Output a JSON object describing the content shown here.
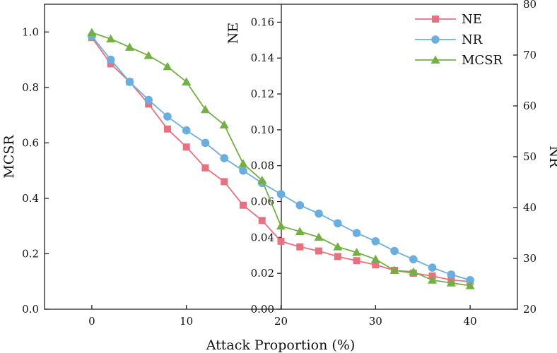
{
  "chart_data": {
    "type": "line",
    "xlabel": "Attack Proportion (%)",
    "x_ticks": [
      0,
      10,
      20,
      30,
      40
    ],
    "xlim": [
      -5,
      45
    ],
    "axes": {
      "left": {
        "label": "MCSR",
        "ylim": [
          0,
          1.1
        ],
        "ticks": [
          "0.0",
          "0.2",
          "0.4",
          "0.6",
          "0.8",
          "1.0"
        ]
      },
      "middle": {
        "label": "NE",
        "ylim": [
          0,
          0.17
        ],
        "ticks": [
          "0.00",
          "0.02",
          "0.04",
          "0.06",
          "0.08",
          "0.10",
          "0.12",
          "0.14",
          "0.16"
        ]
      },
      "right": {
        "label": "NR",
        "ylim": [
          20,
          80
        ],
        "ticks": [
          "20",
          "30",
          "40",
          "50",
          "60",
          "70",
          "80"
        ]
      }
    },
    "legend_position": "top-right",
    "series": [
      {
        "name": "NE",
        "axis": "left",
        "color": "#e8707f",
        "marker": "square",
        "x": [
          0,
          2,
          4,
          6,
          8,
          10,
          12,
          14,
          16,
          18,
          20,
          22,
          24,
          26,
          28,
          30,
          32,
          34,
          36,
          38,
          40
        ],
        "values": [
          0.98,
          0.885,
          0.82,
          0.74,
          0.65,
          0.585,
          0.51,
          0.46,
          0.375,
          0.32,
          0.245,
          0.225,
          0.21,
          0.19,
          0.175,
          0.16,
          0.14,
          0.13,
          0.12,
          0.105,
          0.1
        ]
      },
      {
        "name": "NR",
        "axis": "left",
        "color": "#6aaee0",
        "marker": "circle",
        "x": [
          0,
          2,
          4,
          6,
          8,
          10,
          12,
          14,
          16,
          18,
          20,
          22,
          24,
          26,
          28,
          30,
          32,
          34,
          36,
          38,
          40
        ],
        "values": [
          0.985,
          0.9,
          0.82,
          0.755,
          0.695,
          0.645,
          0.6,
          0.545,
          0.5,
          0.455,
          0.415,
          0.375,
          0.345,
          0.31,
          0.275,
          0.245,
          0.21,
          0.18,
          0.15,
          0.125,
          0.105
        ]
      },
      {
        "name": "MCSR",
        "axis": "left",
        "color": "#72b043",
        "marker": "triangle",
        "x": [
          0,
          2,
          4,
          6,
          8,
          10,
          12,
          14,
          16,
          18,
          20,
          22,
          24,
          26,
          28,
          30,
          32,
          34,
          36,
          38,
          40
        ],
        "values": [
          0.998,
          0.975,
          0.945,
          0.915,
          0.875,
          0.82,
          0.72,
          0.665,
          0.525,
          0.465,
          0.3,
          0.28,
          0.26,
          0.225,
          0.205,
          0.18,
          0.14,
          0.135,
          0.105,
          0.095,
          0.085
        ]
      }
    ]
  }
}
